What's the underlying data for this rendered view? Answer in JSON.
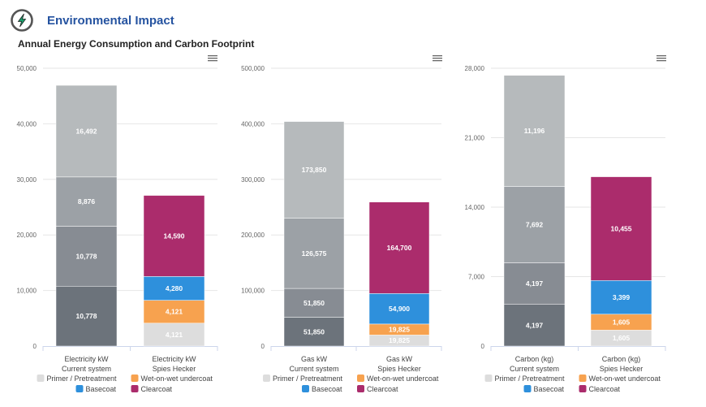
{
  "header": {
    "title": "Environmental Impact",
    "subtitle": "Annual Energy Consumption and Carbon Footprint",
    "logo_icon": "lightning-bolt-icon"
  },
  "colors": {
    "primer": "#dddddd",
    "wet_on_wet": "#f7a24f",
    "basecoat": "#2e90dc",
    "clearcoat": "#ab2c6c",
    "current_shades": [
      "#6c737b",
      "#878c93",
      "#9ca1a6",
      "#b6babc"
    ],
    "title": "#2553a0",
    "logo_bolt": "#1a9e6b"
  },
  "legend": [
    "Primer / Pretreatment",
    "Wet-on-wet undercoat",
    "Basecoat",
    "Clearcoat"
  ],
  "chart_data": [
    {
      "type": "bar",
      "stacked": true,
      "title": "",
      "categories": [
        [
          "Electricity kW",
          "Current system"
        ],
        [
          "Electricity kW",
          "Spies Hecker"
        ]
      ],
      "ylim": [
        0,
        50000
      ],
      "yticks": [
        0,
        10000,
        20000,
        30000,
        40000,
        50000
      ],
      "ytick_labels": [
        "0",
        "10,000",
        "20,000",
        "30,000",
        "40,000",
        "50,000"
      ],
      "series": [
        {
          "name": "Primer / Pretreatment",
          "values": [
            10778,
            4121
          ],
          "labels": [
            "10,778",
            "4,121"
          ]
        },
        {
          "name": "Wet-on-wet undercoat",
          "values": [
            10778,
            4121
          ],
          "labels": [
            "10,778",
            "4,121"
          ]
        },
        {
          "name": "Basecoat",
          "values": [
            8876,
            4280
          ],
          "labels": [
            "8,876",
            "4,280"
          ]
        },
        {
          "name": "Clearcoat",
          "values": [
            16492,
            14590
          ],
          "labels": [
            "16,492",
            "14,590"
          ]
        }
      ],
      "legend_position": "bottom",
      "grid": true
    },
    {
      "type": "bar",
      "stacked": true,
      "title": "",
      "categories": [
        [
          "Gas kW",
          "Current system"
        ],
        [
          "Gas kW",
          "Spies Hecker"
        ]
      ],
      "ylim": [
        0,
        500000
      ],
      "yticks": [
        0,
        100000,
        200000,
        300000,
        400000,
        500000
      ],
      "ytick_labels": [
        "0",
        "100,000",
        "200,000",
        "300,000",
        "400,000",
        "500,000"
      ],
      "series": [
        {
          "name": "Primer / Pretreatment",
          "values": [
            51850,
            19825
          ],
          "labels": [
            "51,850",
            "19,825"
          ]
        },
        {
          "name": "Wet-on-wet undercoat",
          "values": [
            51850,
            19825
          ],
          "labels": [
            "51,850",
            "19,825"
          ]
        },
        {
          "name": "Basecoat",
          "values": [
            126575,
            54900
          ],
          "labels": [
            "126,575",
            "54,900"
          ]
        },
        {
          "name": "Clearcoat",
          "values": [
            173850,
            164700
          ],
          "labels": [
            "173,850",
            "164,700"
          ]
        }
      ],
      "legend_position": "bottom",
      "grid": true
    },
    {
      "type": "bar",
      "stacked": true,
      "title": "",
      "categories": [
        [
          "Carbon (kg)",
          "Current system"
        ],
        [
          "Carbon (kg)",
          "Spies Hecker"
        ]
      ],
      "ylim": [
        0,
        28000
      ],
      "yticks": [
        0,
        7000,
        14000,
        21000,
        28000
      ],
      "ytick_labels": [
        "0",
        "7,000",
        "14,000",
        "21,000",
        "28,000"
      ],
      "series": [
        {
          "name": "Primer / Pretreatment",
          "values": [
            4197,
            1605
          ],
          "labels": [
            "4,197",
            "1,605"
          ]
        },
        {
          "name": "Wet-on-wet undercoat",
          "values": [
            4197,
            1605
          ],
          "labels": [
            "4,197",
            "1,605"
          ]
        },
        {
          "name": "Basecoat",
          "values": [
            7692,
            3399
          ],
          "labels": [
            "7,692",
            "3,399"
          ]
        },
        {
          "name": "Clearcoat",
          "values": [
            11196,
            10455
          ],
          "labels": [
            "11,196",
            "10,455"
          ]
        }
      ],
      "legend_position": "bottom",
      "grid": true
    }
  ]
}
